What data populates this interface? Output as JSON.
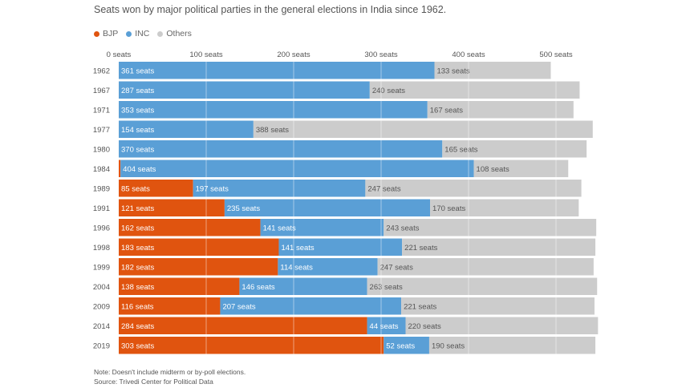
{
  "subtitle": "Seats won by major political parties in the general elections in India since 1962.",
  "legend": [
    {
      "name": "BJP",
      "color": "#e0540f"
    },
    {
      "name": "INC",
      "color": "#5a9fd6"
    },
    {
      "name": "Others",
      "color": "#cccccc"
    }
  ],
  "notes": {
    "note": "Note: Doesn't include midterm or by-poll elections.",
    "source": "Source: Trivedi Center for Political Data"
  },
  "chart_data": {
    "type": "bar",
    "orientation": "horizontal",
    "stacked": true,
    "unit_suffix": " seats",
    "xlim": [
      0,
      550
    ],
    "x_ticks": [
      {
        "value": 0,
        "label": "0 seats"
      },
      {
        "value": 100,
        "label": "100 seats"
      },
      {
        "value": 200,
        "label": "200 seats"
      },
      {
        "value": 300,
        "label": "300 seats"
      },
      {
        "value": 400,
        "label": "400 seats"
      },
      {
        "value": 500,
        "label": "500 seats"
      }
    ],
    "grid": true,
    "legend_position": "top-left",
    "categories": [
      "1962",
      "1967",
      "1971",
      "1977",
      "1980",
      "1984",
      "1989",
      "1991",
      "1996",
      "1998",
      "1999",
      "2004",
      "2009",
      "2014",
      "2019"
    ],
    "series": [
      {
        "name": "BJP",
        "color": "#e0540f",
        "values": [
          0,
          0,
          0,
          0,
          0,
          2,
          85,
          121,
          162,
          183,
          182,
          138,
          116,
          284,
          303
        ],
        "show_labels": [
          false,
          false,
          false,
          false,
          false,
          false,
          true,
          true,
          true,
          true,
          true,
          true,
          true,
          true,
          true
        ]
      },
      {
        "name": "INC",
        "color": "#5a9fd6",
        "values": [
          361,
          287,
          353,
          154,
          370,
          404,
          197,
          235,
          141,
          141,
          114,
          146,
          207,
          44,
          52
        ],
        "show_labels": [
          true,
          true,
          true,
          true,
          true,
          true,
          true,
          true,
          true,
          true,
          true,
          true,
          true,
          true,
          true
        ]
      },
      {
        "name": "Others",
        "color": "#cccccc",
        "values": [
          133,
          240,
          167,
          388,
          165,
          108,
          247,
          170,
          243,
          221,
          247,
          263,
          221,
          220,
          190
        ],
        "show_labels": [
          true,
          true,
          true,
          true,
          true,
          true,
          true,
          true,
          true,
          true,
          true,
          true,
          true,
          true,
          true
        ]
      }
    ]
  }
}
